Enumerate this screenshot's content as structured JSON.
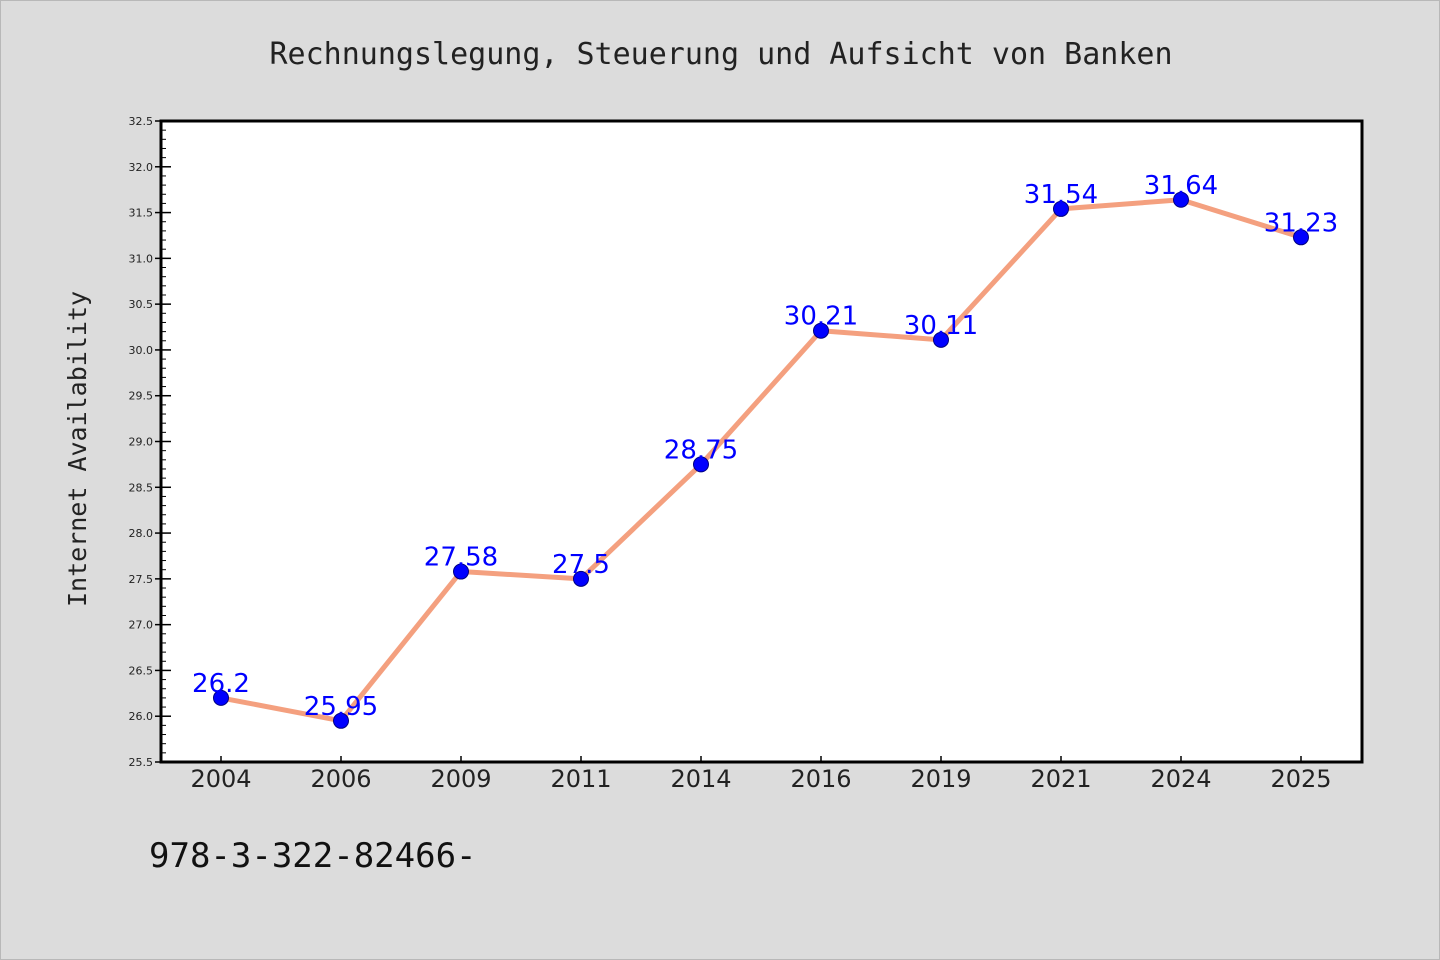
{
  "colors": {
    "line": "#f4a07f",
    "marker": "#0000ff",
    "marker_edge": "#000080",
    "data_label": "#0000ff",
    "plot_background": "#ffffff",
    "figure_background": "#dcdcdc",
    "axes_edge": "#000000"
  },
  "footer": "978-3-322-82466-",
  "chart_data": {
    "type": "line",
    "title": "Rechnungslegung, Steuerung und Aufsicht von Banken",
    "xlabel": "",
    "ylabel": "Internet Availability",
    "categories": [
      "2004",
      "2006",
      "2009",
      "2011",
      "2014",
      "2016",
      "2019",
      "2021",
      "2024",
      "2025"
    ],
    "series": [
      {
        "values": [
          26.2,
          25.95,
          27.58,
          27.5,
          28.75,
          30.21,
          30.11,
          31.54,
          31.64,
          31.23
        ],
        "data_labels": [
          "26.2",
          "25.95",
          "27.58",
          "27.5",
          "28.75",
          "30.21",
          "30.11",
          "31.54",
          "31.64",
          "31.23"
        ]
      }
    ],
    "ylim": [
      25.5,
      32.5
    ],
    "yticks": [
      "25.5",
      "26.0",
      "26.5",
      "27.0",
      "27.5",
      "28.0",
      "28.5",
      "29.0",
      "29.5",
      "30.0",
      "30.5",
      "31.0",
      "31.5",
      "32.0",
      "32.5"
    ],
    "grid": false,
    "legend": "none"
  }
}
